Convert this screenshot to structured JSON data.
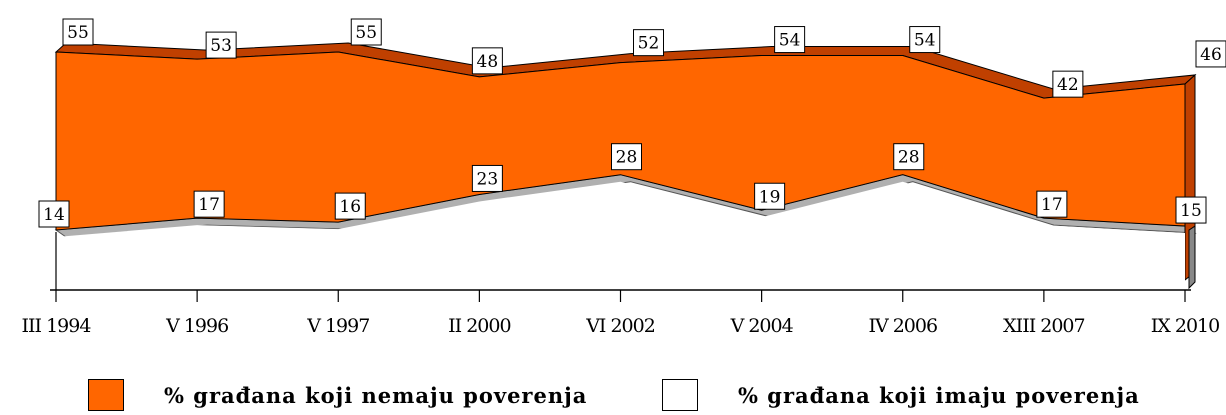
{
  "chart_data": {
    "type": "area",
    "categories": [
      "III 1994",
      "V 1996",
      "V 1997",
      "II 2000",
      "VI 2002",
      "V 2004",
      "IV 2006",
      "XIII 2007",
      "IX 2010"
    ],
    "series": [
      {
        "name": "% građana koji nemaju poverenja",
        "values": [
          55,
          53,
          55,
          48,
          52,
          54,
          54,
          42,
          46
        ],
        "color": "#ff6600"
      },
      {
        "name": "% građana koji imaju poverenja",
        "values": [
          14,
          17,
          16,
          23,
          28,
          19,
          28,
          17,
          15
        ],
        "color": "#ffffff"
      }
    ],
    "colors": {
      "top_edge": "#c04000",
      "bottom_edge": "#b0b0b0",
      "axis": "#000000"
    },
    "stacked": true,
    "three_d": true,
    "grid": false
  },
  "legend": {
    "items": [
      {
        "label": "% građana koji nemaju poverenja",
        "color": "#ff6600"
      },
      {
        "label": "% građana koji imaju poverenja",
        "color": "#ffffff"
      }
    ]
  }
}
